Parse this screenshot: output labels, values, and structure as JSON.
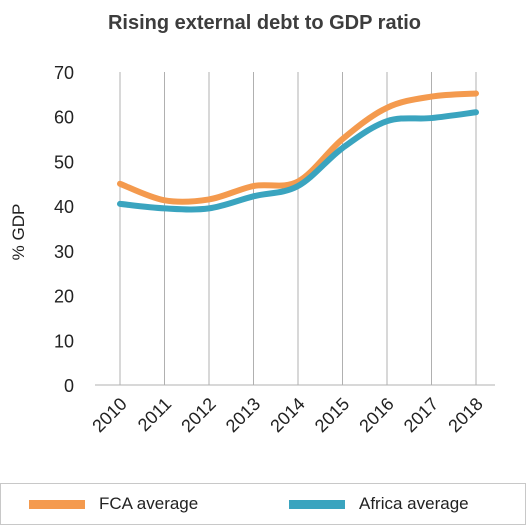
{
  "chart_data": {
    "type": "line",
    "title": "Rising external debt to GDP ratio",
    "ylabel": "% GDP",
    "xlabel": "",
    "ylim": [
      0,
      70
    ],
    "yticks": [
      0,
      10,
      20,
      30,
      40,
      50,
      60,
      70
    ],
    "categories": [
      "2010",
      "2011",
      "2012",
      "2013",
      "2014",
      "2015",
      "2016",
      "2017",
      "2018"
    ],
    "grid": "vertical",
    "legend_position": "bottom",
    "series": [
      {
        "name": "FCA average",
        "color": "#f49a4e",
        "values": [
          45,
          41.3,
          41.5,
          44.5,
          45.5,
          55,
          62,
          64.5,
          65.2
        ]
      },
      {
        "name": "Africa average",
        "color": "#3aa4bf",
        "values": [
          40.5,
          39.5,
          39.5,
          42.2,
          44.5,
          53,
          59,
          59.7,
          61
        ]
      }
    ]
  }
}
